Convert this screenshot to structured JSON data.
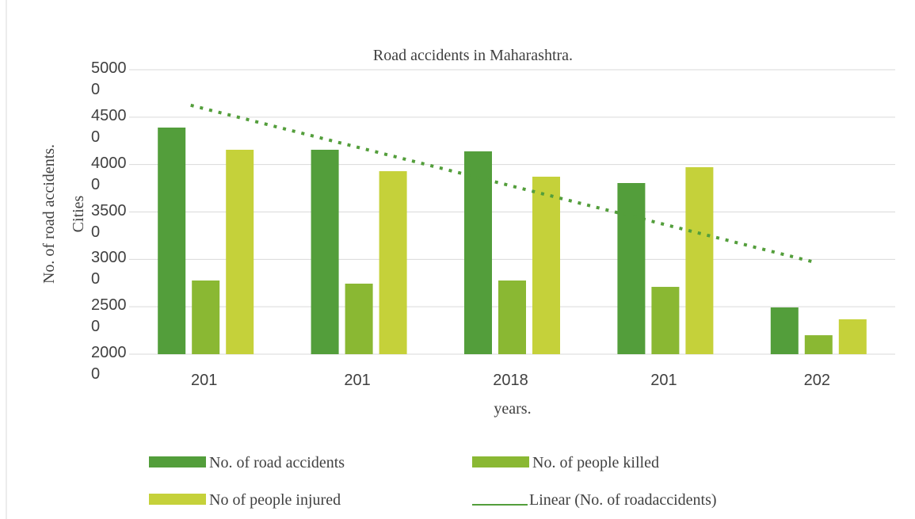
{
  "chart_data": {
    "type": "bar",
    "title": "Road accidents in Maharashtra.",
    "xlabel": "years.",
    "ylabel": "No. of road accidents.",
    "annotation": "Cities",
    "categories": [
      "201",
      "201",
      "2018",
      "201",
      "202"
    ],
    "series": [
      {
        "name": "No. of road accidents",
        "color": "#539e3b",
        "values": [
          43900,
          41560,
          41390,
          38050,
          24930
        ]
      },
      {
        "name": "No. of people killed",
        "color": "#8ab833",
        "values": [
          27770,
          27440,
          27770,
          27100,
          22000
        ]
      },
      {
        "name": "No of people injured",
        "color": "#c5d13a",
        "values": [
          41560,
          39300,
          38720,
          39720,
          23680
        ]
      }
    ],
    "trendline": {
      "name": "Linear (No. of roadaccidents)",
      "color": "#539e3b",
      "style": "dotted"
    },
    "ylim": [
      20000,
      50000
    ],
    "yticks": [
      20000,
      25000,
      30000,
      35000,
      40000,
      45000,
      50000
    ],
    "grid": true
  }
}
